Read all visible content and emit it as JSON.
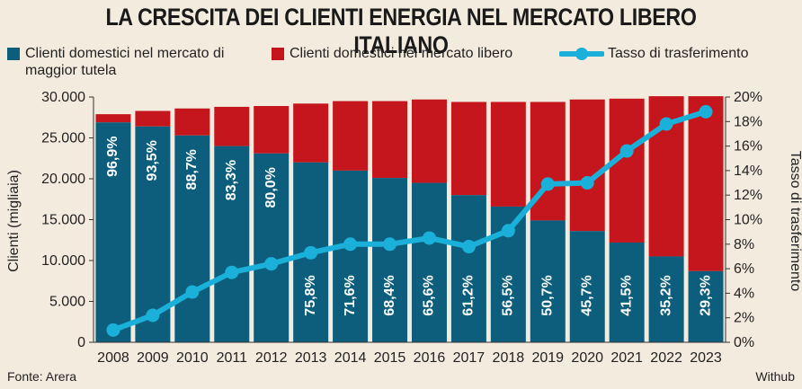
{
  "title": "LA CRESCITA DEI CLIENTI ENERGIA NEL MERCATO LIBERO ITALIANO",
  "legend": {
    "tutela": "Clienti domestici nel mercato di maggior tutela",
    "libero": "Clienti domestici nel mercato libero",
    "tasso": "Tasso di trasferimento"
  },
  "source": "Fonte: Arera",
  "credit": "Withub",
  "colors": {
    "tutela": "#0d5e7c",
    "libero": "#c4161c",
    "tasso": "#1bb0d9",
    "background": "#f3ebde"
  },
  "chart_data": {
    "type": "bar",
    "stacked": true,
    "categories": [
      "2008",
      "2009",
      "2010",
      "2011",
      "2012",
      "2013",
      "2014",
      "2015",
      "2016",
      "2017",
      "2018",
      "2019",
      "2020",
      "2021",
      "2022",
      "2023"
    ],
    "ylabel": "Clienti (migliaia)",
    "ylabel_right": "Tasso di trasferimento",
    "ylim": [
      0,
      30000
    ],
    "yticks": [
      "0",
      "5.000",
      "10.000",
      "15.000",
      "20.000",
      "25.000",
      "30.000"
    ],
    "ylim_right": [
      0,
      20
    ],
    "yticks_right": [
      "0%",
      "2%",
      "4%",
      "6%",
      "8%",
      "10%",
      "12%",
      "14%",
      "16%",
      "18%",
      "20%"
    ],
    "series": [
      {
        "name": "Clienti domestici nel mercato di maggior tutela",
        "kind": "bar",
        "values": [
          26900,
          26400,
          25300,
          24000,
          23100,
          22000,
          21000,
          20100,
          19500,
          18000,
          16600,
          14900,
          13600,
          12200,
          10500,
          8700
        ],
        "labels": [
          "96,9%",
          "93,5%",
          "88,7%",
          "83,3%",
          "80,0%",
          "75,8%",
          "71,6%",
          "68,4%",
          "65,6%",
          "61,2%",
          "56,5%",
          "50,7%",
          "45,7%",
          "41,5%",
          "35,2%",
          "29,3%"
        ]
      },
      {
        "name": "Clienti domestici nel mercato libero",
        "kind": "bar",
        "values": [
          1000,
          1900,
          3300,
          4800,
          5800,
          7200,
          8500,
          9400,
          10200,
          11400,
          12800,
          14500,
          16100,
          17600,
          19600,
          21400
        ]
      },
      {
        "name": "Tasso di trasferimento",
        "kind": "line",
        "axis": "right",
        "values": [
          1.0,
          2.2,
          4.1,
          5.7,
          6.4,
          7.3,
          8.0,
          8.0,
          8.5,
          7.8,
          9.1,
          12.9,
          13.0,
          15.6,
          17.8,
          18.8
        ]
      }
    ]
  }
}
